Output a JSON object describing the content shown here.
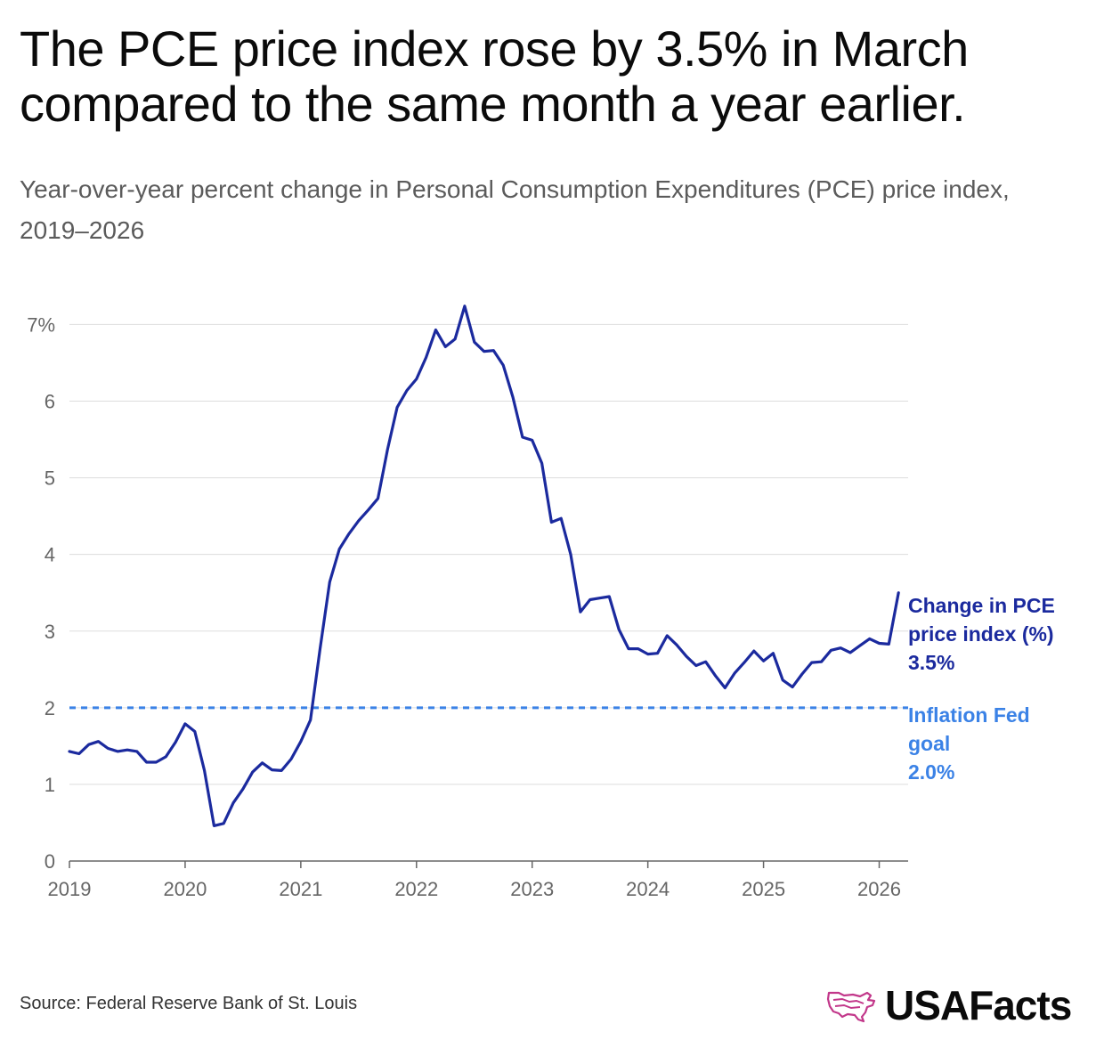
{
  "title": "The PCE price index rose by 3.5% in March compared to the same month a year earlier.",
  "subtitle": "Year-over-year percent change in Personal Consumption Expenditures (PCE) price index, 2019–2026",
  "source": "Source: Federal Reserve Bank of St. Louis",
  "brand": "USAFacts",
  "colors": {
    "series": "#1b2a9e",
    "goal": "#3b82e6",
    "grid": "#dddddd",
    "axis": "#666666",
    "logo_icon": "#c2378a"
  },
  "chart_data": {
    "type": "line",
    "xlim": [
      "2019-01",
      "2026-04"
    ],
    "ylim": [
      0,
      7.4
    ],
    "x_ticks": [
      "2019",
      "2020",
      "2021",
      "2022",
      "2023",
      "2024",
      "2025",
      "2026"
    ],
    "y_ticks": [
      "0",
      "1",
      "2",
      "3",
      "4",
      "5",
      "6",
      "7%"
    ],
    "y_tick_values": [
      0,
      1,
      2,
      3,
      4,
      5,
      6,
      7
    ],
    "grid": true,
    "series": [
      {
        "name": "Change in PCE price index (%)",
        "label_lines": [
          "Change in PCE",
          "price index (%)",
          "3.5%"
        ],
        "start": "2019-01",
        "frequency": "monthly",
        "values": [
          1.43,
          1.4,
          1.52,
          1.56,
          1.47,
          1.43,
          1.45,
          1.43,
          1.29,
          1.29,
          1.36,
          1.55,
          1.79,
          1.69,
          1.18,
          0.46,
          0.49,
          0.76,
          0.94,
          1.16,
          1.28,
          1.19,
          1.18,
          1.33,
          1.56,
          1.84,
          2.77,
          3.64,
          4.07,
          4.27,
          4.44,
          4.58,
          4.73,
          5.37,
          5.92,
          6.14,
          6.29,
          6.57,
          6.93,
          6.71,
          6.81,
          7.24,
          6.77,
          6.65,
          6.66,
          6.47,
          6.05,
          5.53,
          5.49,
          5.19,
          4.42,
          4.47,
          4.0,
          3.25,
          3.41,
          3.43,
          3.45,
          3.02,
          2.77,
          2.77,
          2.7,
          2.71,
          2.94,
          2.82,
          2.67,
          2.55,
          2.6,
          2.42,
          2.26,
          2.45,
          2.59,
          2.74,
          2.61,
          2.71,
          2.36,
          2.27,
          2.44,
          2.59,
          2.6,
          2.75,
          2.78,
          2.72,
          2.81,
          2.9,
          2.84,
          2.83,
          3.5
        ]
      },
      {
        "name": "Inflation Fed goal",
        "label_lines": [
          "Inflation Fed",
          "goal",
          "2.0%"
        ],
        "style": "dashed",
        "value": 2.0
      }
    ]
  }
}
